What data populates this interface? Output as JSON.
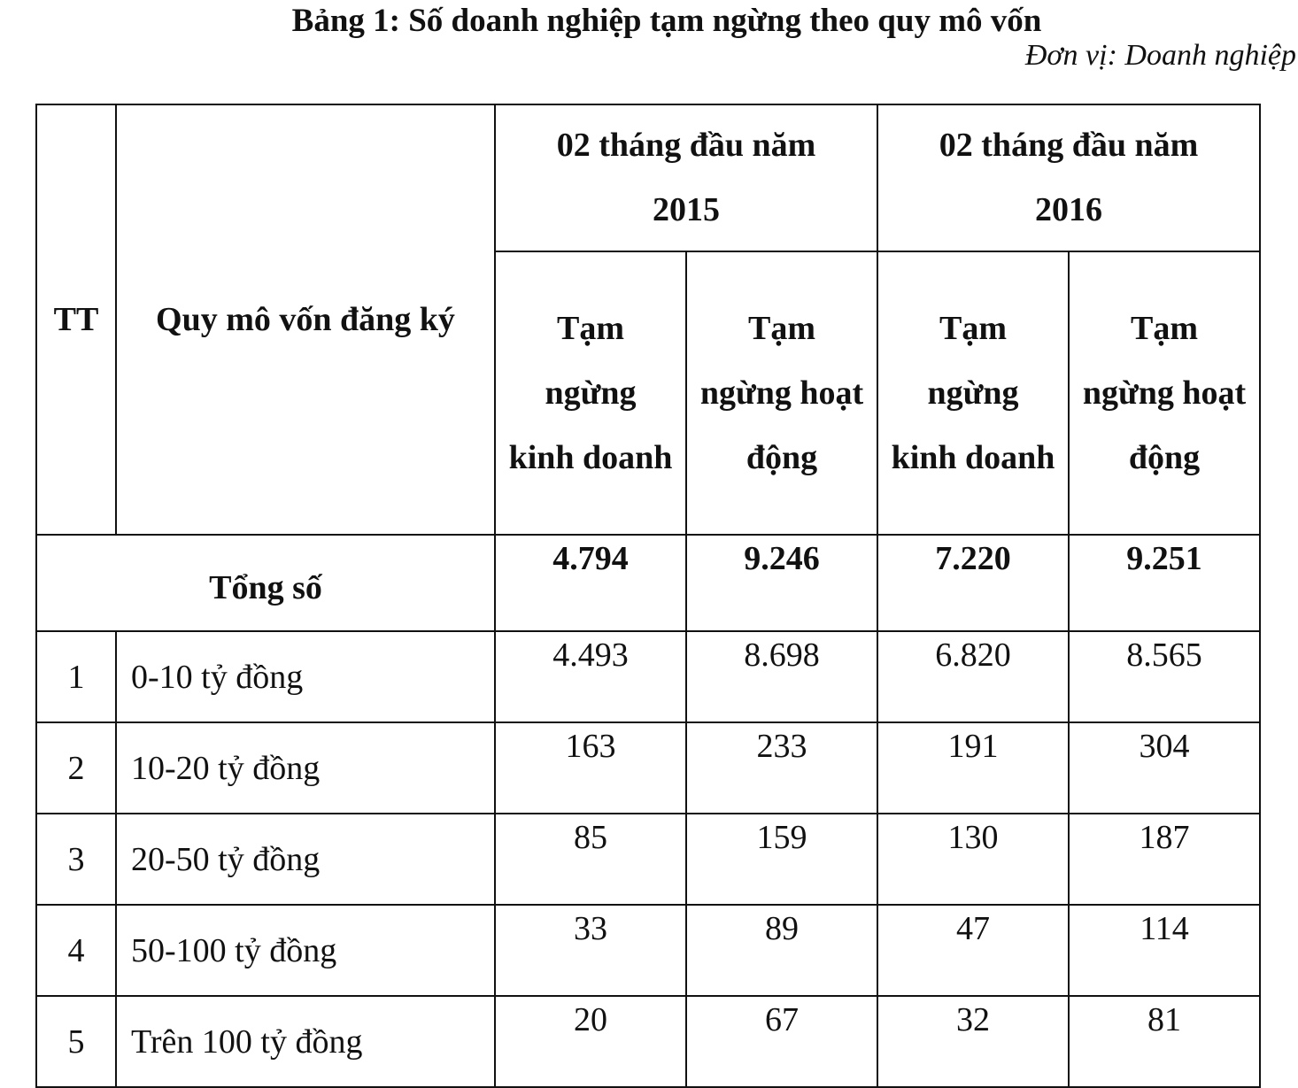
{
  "title": "Bảng 1: Số doanh nghiệp tạm ngừng theo quy mô vốn",
  "unit": "Đơn vị: Doanh nghiệp",
  "table": {
    "header": {
      "tt": "TT",
      "scale": "Quy mô vốn đăng ký",
      "periods": [
        "02 tháng đầu năm 2015",
        "02 tháng đầu năm 2016"
      ],
      "subheaders": [
        "Tạm ngừng kinh doanh",
        "Tạm ngừng hoạt động",
        "Tạm ngừng kinh doanh",
        "Tạm ngừng hoạt động"
      ]
    },
    "total": {
      "label": "Tổng số",
      "values": [
        "4.794",
        "9.246",
        "7.220",
        "9.251"
      ]
    },
    "rows": [
      [
        "1",
        "0-10 tỷ đồng",
        "4.493",
        "8.698",
        "6.820",
        "8.565"
      ],
      [
        "2",
        "10-20 tỷ đồng",
        "163",
        "233",
        "191",
        "304"
      ],
      [
        "3",
        "20-50 tỷ đồng",
        "85",
        "159",
        "130",
        "187"
      ],
      [
        "4",
        "50-100 tỷ đồng",
        "33",
        "89",
        "47",
        "114"
      ],
      [
        "5",
        "Trên 100 tỷ đồng",
        "20",
        "67",
        "32",
        "81"
      ]
    ]
  }
}
